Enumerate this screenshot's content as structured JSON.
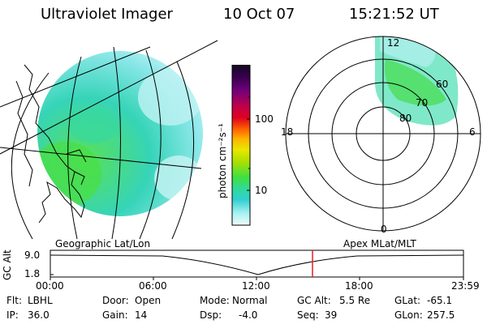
{
  "header": {
    "instrument": "Ultraviolet Imager",
    "date": "10 Oct 07",
    "time": "15:21:52 UT"
  },
  "colorbar": {
    "unit_label": "photon cm⁻²s⁻¹",
    "ticks": [
      "100",
      "10"
    ],
    "colors": [
      "#1a0a2a",
      "#3a0050",
      "#70007a",
      "#c0004a",
      "#e00020",
      "#ff6000",
      "#ffb000",
      "#e8e800",
      "#b0e000",
      "#40e040",
      "#30d8a0",
      "#30d0d0",
      "#a0f0f0",
      "#e8fafa"
    ]
  },
  "left_panel": {
    "caption": "Geographic Lat/Lon"
  },
  "right_panel": {
    "caption": "Apex MLat/MLT",
    "mlt_labels": {
      "top": "12",
      "bottom": "0",
      "left": "18",
      "right": "6"
    },
    "lat_labels": [
      "60",
      "70",
      "80"
    ]
  },
  "timeline": {
    "ylabel": "GC Alt",
    "y_ticks": [
      "9.0",
      "1.8"
    ],
    "x_ticks": [
      "00:00",
      "06:00",
      "12:00",
      "18:00",
      "23:59"
    ],
    "marker_color": "#dd2222"
  },
  "status": {
    "row1": [
      {
        "label": "Flt:",
        "value": "LBHL"
      },
      {
        "label": "Door:",
        "value": "Open"
      },
      {
        "label": "Mode:",
        "value": "Normal"
      },
      {
        "label": "GC Alt:",
        "value": "5.5 Re"
      },
      {
        "label": "GLat:",
        "value": "-65.1"
      }
    ],
    "row2": [
      {
        "label": "IP:",
        "value": "36.0"
      },
      {
        "label": "Gain:",
        "value": "14"
      },
      {
        "label": "Dsp:",
        "value": "-4.0"
      },
      {
        "label": "Seq:",
        "value": "39"
      },
      {
        "label": "GLon:",
        "value": "257.5"
      }
    ]
  }
}
